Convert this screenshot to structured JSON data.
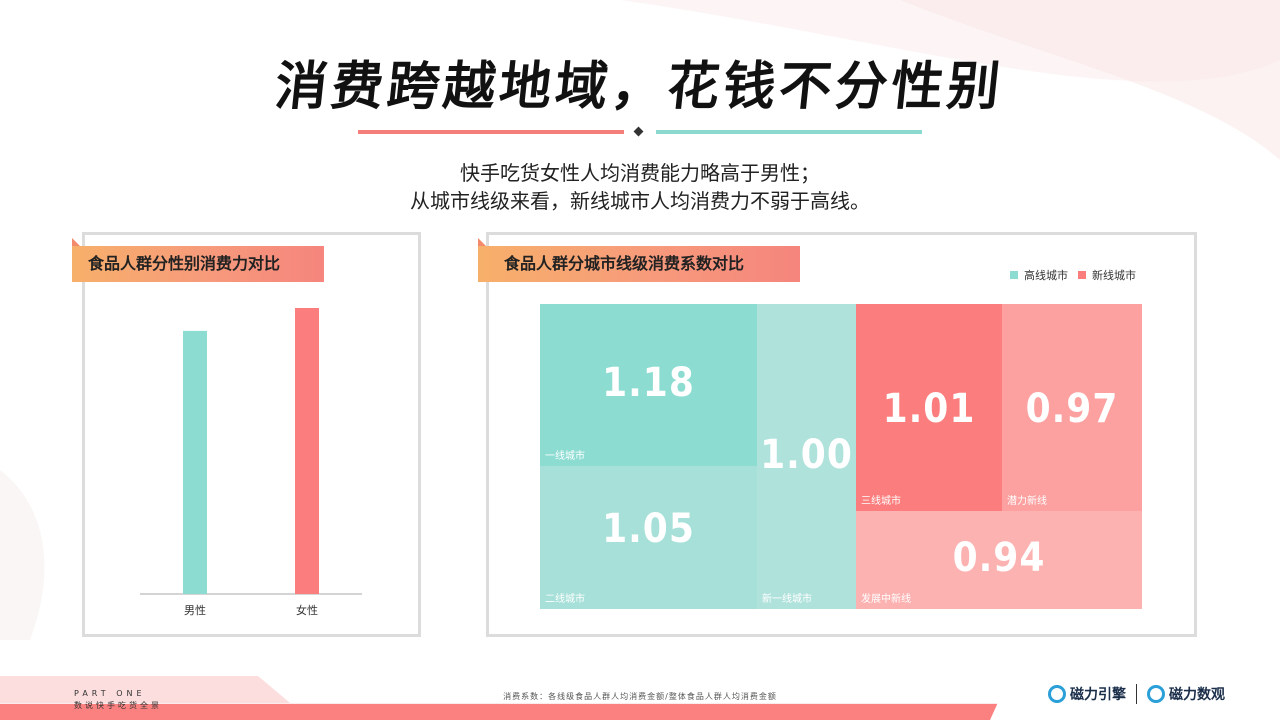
{
  "title": "消费跨越地域，花钱不分性别",
  "subtitle_lines": [
    "快手吃货女性人均消费能力略高于男性；",
    "从城市线级来看，新线城市人均消费力不弱于高线。"
  ],
  "colors": {
    "teal": "#8cdcd2",
    "teal_light": "#a6e0d8",
    "red": "#fb7d7d",
    "red_light": "#fca0a0",
    "red_lighter": "#fdb2b2"
  },
  "panel_left": {
    "tag": "食品人群分性别消费力对比"
  },
  "panel_right": {
    "tag": "食品人群分城市线级消费系数对比",
    "legend": [
      {
        "label": "高线城市",
        "color": "#8cdcd2"
      },
      {
        "label": "新线城市",
        "color": "#fb7d7d"
      }
    ]
  },
  "chart_data": [
    {
      "type": "bar",
      "title": "食品人群分性别消费力对比",
      "categories": [
        "男性",
        "女性"
      ],
      "values": [
        0.92,
        1.0
      ],
      "ylim": [
        0,
        1.0
      ],
      "colors": [
        "#8cdcd2",
        "#fb7d7d"
      ],
      "grid": false
    },
    {
      "type": "treemap",
      "title": "食品人群分城市线级消费系数对比",
      "series": [
        {
          "name": "高线城市",
          "items": [
            {
              "label": "一线城市",
              "value": 1.18
            },
            {
              "label": "二线城市",
              "value": 1.05
            },
            {
              "label": "新一线城市",
              "value": 1.0
            }
          ]
        },
        {
          "name": "新线城市",
          "items": [
            {
              "label": "三线城市",
              "value": 1.01
            },
            {
              "label": "潜力新线",
              "value": 0.97
            },
            {
              "label": "发展中新线",
              "value": 0.94
            }
          ]
        }
      ]
    }
  ],
  "footer": {
    "part": "PART ONE",
    "section": "数说快手吃货全景",
    "footnote": "消费系数：各线级食品人群人均消费金额/整体食品人群人均消费金额",
    "logo_left": "磁力引擎",
    "logo_right": "磁力数观"
  }
}
